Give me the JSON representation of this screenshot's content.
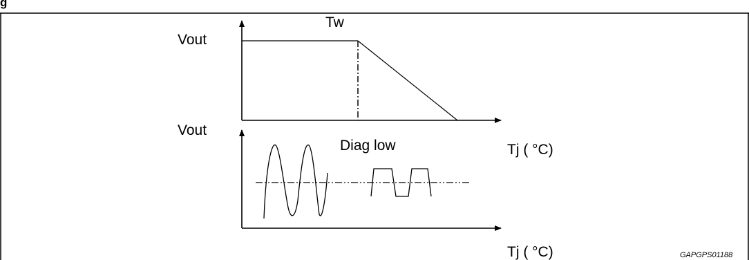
{
  "heading": "g",
  "top_panel": {
    "y_axis_label": "Vout",
    "threshold_label": "Tw"
  },
  "bottom_panel": {
    "y_axis_label": "Vout",
    "annotation": "Diag low",
    "x_axis_label": "Tj ( °C)"
  },
  "top_x_axis_label": "Tj ( °C)",
  "figure_code": "GAPGPS01188",
  "colors": {
    "line": "#000000",
    "background": "#ffffff"
  }
}
